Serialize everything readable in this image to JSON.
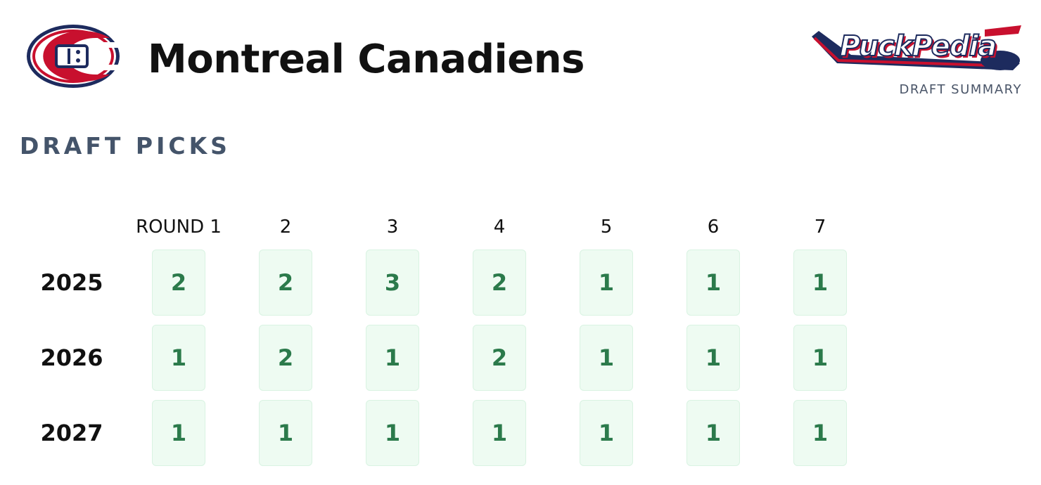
{
  "header": {
    "title": "Montreal Canadiens",
    "logo_text": "PuckPedia",
    "subtitle": "DRAFT SUMMARY"
  },
  "section": {
    "title": "DRAFT PICKS"
  },
  "table": {
    "columns": [
      "ROUND 1",
      "2",
      "3",
      "4",
      "5",
      "6",
      "7"
    ],
    "rows": [
      {
        "year": "2025",
        "picks": [
          2,
          2,
          3,
          2,
          1,
          1,
          1
        ]
      },
      {
        "year": "2026",
        "picks": [
          1,
          2,
          1,
          2,
          1,
          1,
          1
        ]
      },
      {
        "year": "2027",
        "picks": [
          1,
          1,
          1,
          1,
          1,
          1,
          1
        ]
      }
    ]
  }
}
